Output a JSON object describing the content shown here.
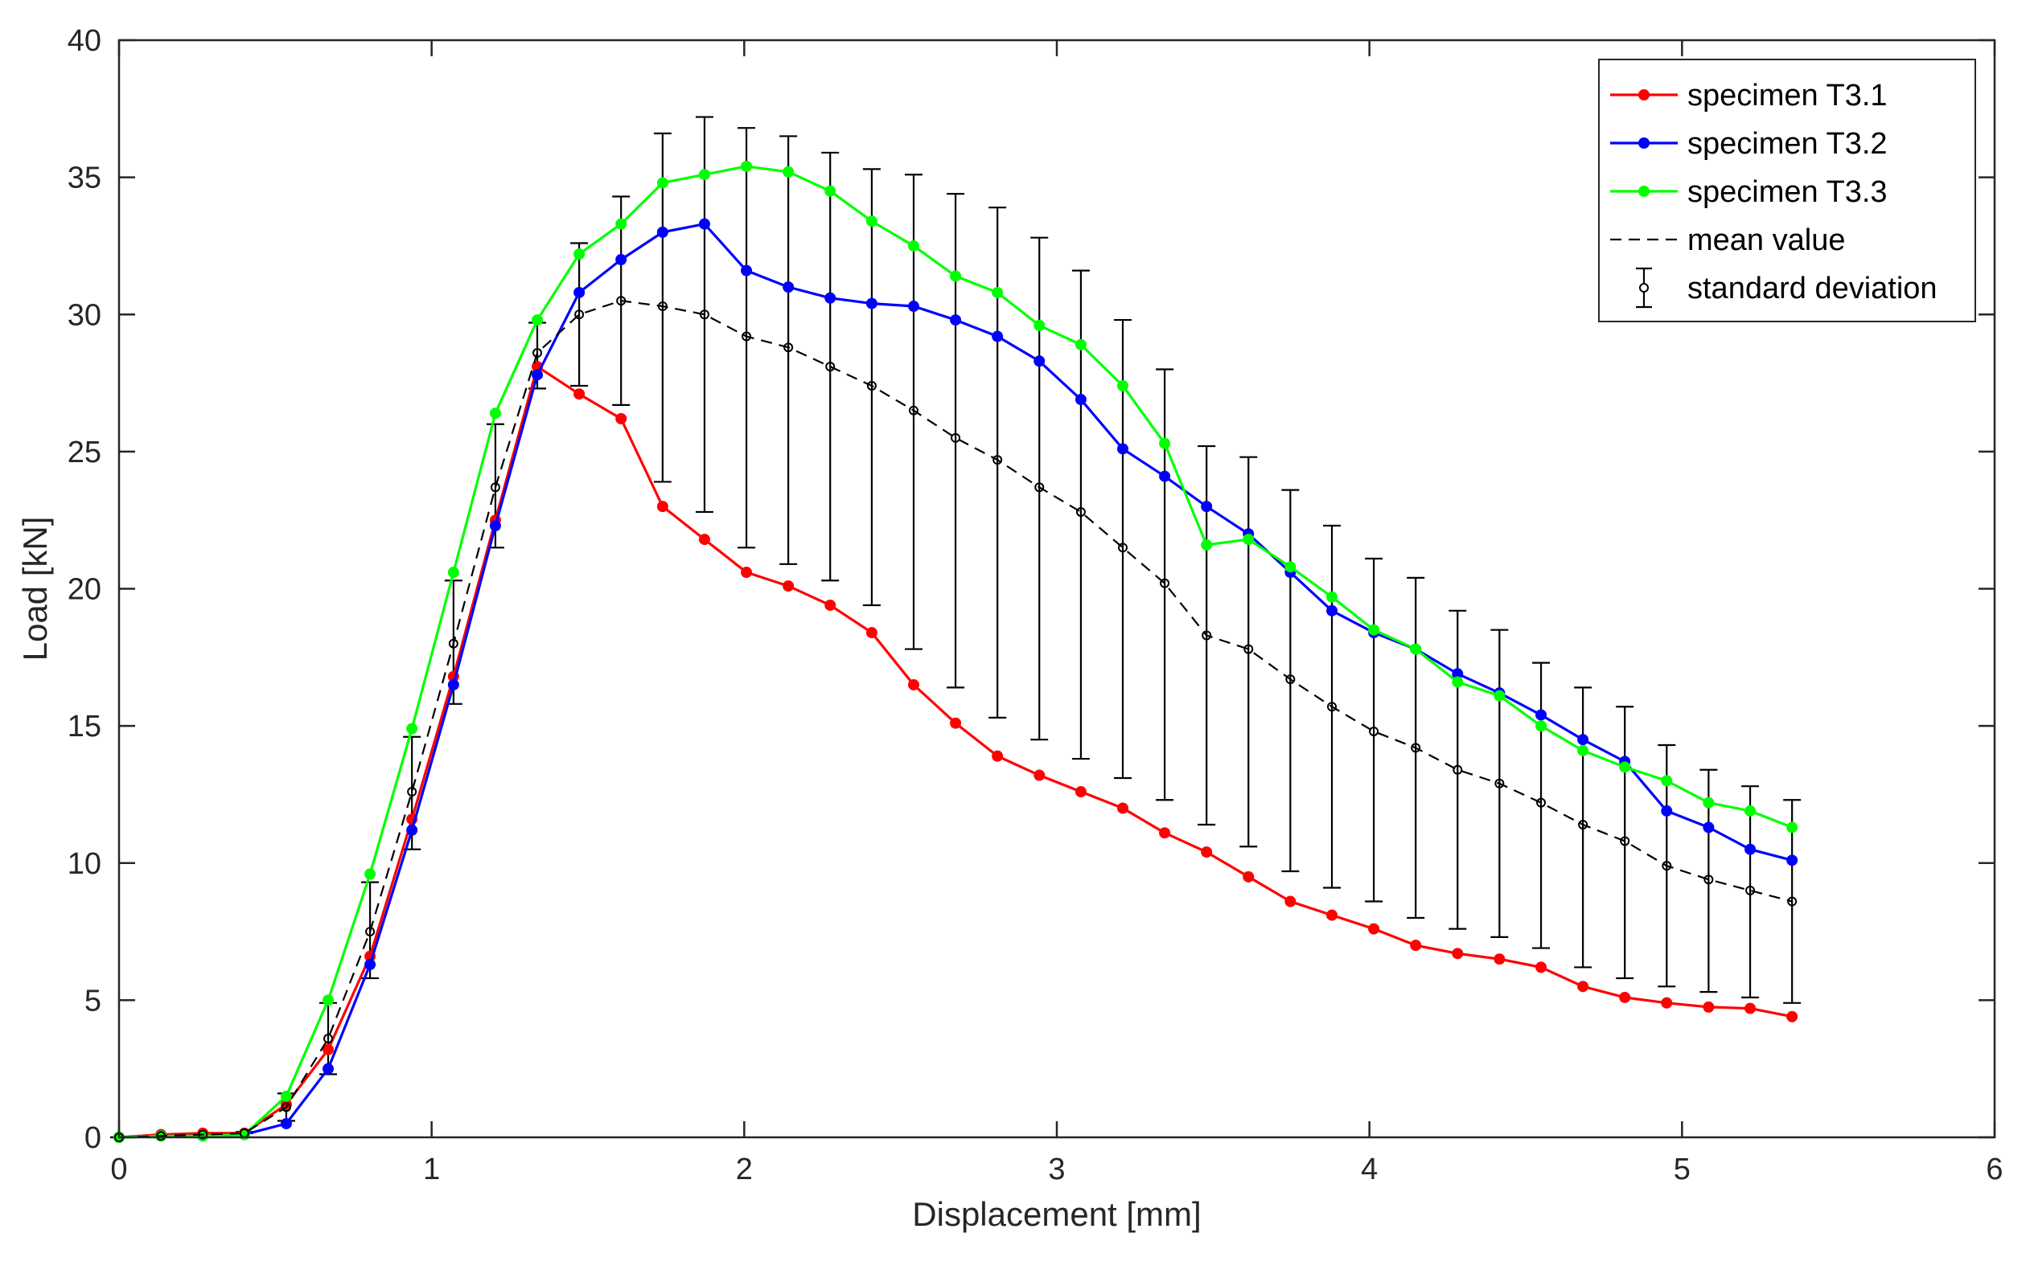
{
  "chart_data": {
    "type": "line",
    "title": "",
    "xlabel": "Displacement [mm]",
    "ylabel": "Load [kN]",
    "xlim": [
      0,
      6
    ],
    "ylim": [
      0,
      40
    ],
    "xticks": [
      0,
      1,
      2,
      3,
      4,
      5,
      6
    ],
    "yticks": [
      0,
      5,
      10,
      15,
      20,
      25,
      30,
      35,
      40
    ],
    "x": [
      0,
      0.134,
      0.268,
      0.401,
      0.535,
      0.669,
      0.803,
      0.937,
      1.07,
      1.204,
      1.338,
      1.472,
      1.606,
      1.739,
      1.873,
      2.007,
      2.141,
      2.275,
      2.408,
      2.542,
      2.676,
      2.81,
      2.944,
      3.077,
      3.211,
      3.345,
      3.479,
      3.613,
      3.747,
      3.88,
      4.014,
      4.148,
      4.282,
      4.416,
      4.549,
      4.683,
      4.817,
      4.951,
      5.085,
      5.218,
      5.352
    ],
    "series": [
      {
        "name": "specimen T3.1",
        "color": "#ff0000",
        "style": "solid",
        "values": [
          0,
          0.1,
          0.15,
          0.15,
          1.2,
          3.2,
          6.6,
          11.6,
          16.8,
          22.5,
          28.1,
          27.1,
          26.2,
          23.0,
          21.8,
          20.6,
          20.1,
          19.4,
          18.4,
          16.5,
          15.1,
          13.9,
          13.2,
          12.6,
          12.0,
          11.1,
          10.4,
          9.5,
          8.6,
          8.1,
          7.6,
          7.0,
          6.7,
          6.5,
          6.2,
          5.5,
          5.1,
          4.9,
          4.75,
          4.7,
          4.4
        ]
      },
      {
        "name": "specimen T3.2",
        "color": "#0000ff",
        "style": "solid",
        "values": [
          0,
          0.05,
          0.05,
          0.1,
          0.5,
          2.5,
          6.3,
          11.2,
          16.5,
          22.3,
          27.8,
          30.8,
          32.0,
          33.0,
          33.3,
          31.6,
          31.0,
          30.6,
          30.4,
          30.3,
          29.8,
          29.2,
          28.3,
          26.9,
          25.1,
          24.1,
          23.0,
          22.0,
          20.6,
          19.2,
          18.4,
          17.8,
          16.9,
          16.2,
          15.4,
          14.5,
          13.7,
          11.9,
          11.3,
          10.5,
          10.1
        ]
      },
      {
        "name": "specimen T3.3",
        "color": "#00ff00",
        "style": "solid",
        "values": [
          0,
          0.05,
          0.05,
          0.1,
          1.5,
          5.0,
          9.6,
          14.9,
          20.6,
          26.4,
          29.8,
          32.2,
          33.3,
          34.8,
          35.1,
          35.4,
          35.2,
          34.5,
          33.4,
          32.5,
          31.4,
          30.8,
          29.6,
          28.9,
          27.4,
          25.3,
          21.6,
          21.8,
          20.8,
          19.7,
          18.5,
          17.8,
          16.6,
          16.1,
          15.0,
          14.1,
          13.5,
          13.0,
          12.2,
          11.9,
          11.3
        ]
      },
      {
        "name": "mean value",
        "color": "#000000",
        "style": "dashed",
        "values": [
          0,
          0.05,
          0.1,
          0.15,
          1.1,
          3.6,
          7.5,
          12.6,
          18.0,
          23.7,
          28.6,
          30.0,
          30.5,
          30.3,
          30.0,
          29.2,
          28.8,
          28.1,
          27.4,
          26.5,
          25.5,
          24.7,
          23.7,
          22.8,
          21.5,
          20.2,
          18.3,
          17.8,
          16.7,
          15.7,
          14.8,
          14.2,
          13.4,
          12.9,
          12.2,
          11.4,
          10.8,
          9.9,
          9.4,
          9.0,
          8.6
        ]
      }
    ],
    "error_bars": {
      "name": "standard deviation",
      "color": "#000000",
      "lower": [
        0,
        0.05,
        0.1,
        0.15,
        0.6,
        2.3,
        5.8,
        10.5,
        15.8,
        21.5,
        27.3,
        27.4,
        26.7,
        23.9,
        22.8,
        21.5,
        20.9,
        20.3,
        19.4,
        17.8,
        16.4,
        15.3,
        14.5,
        13.8,
        13.1,
        12.3,
        11.4,
        10.6,
        9.7,
        9.1,
        8.6,
        8.0,
        7.6,
        7.3,
        6.9,
        6.2,
        5.8,
        5.5,
        5.3,
        5.1,
        4.9
      ],
      "upper": [
        0,
        0.1,
        0.15,
        0.2,
        1.6,
        4.9,
        9.3,
        14.6,
        20.3,
        26.0,
        29.7,
        32.6,
        34.3,
        36.6,
        37.2,
        36.8,
        36.5,
        35.9,
        35.3,
        35.1,
        34.4,
        33.9,
        32.8,
        31.6,
        29.8,
        28.0,
        25.2,
        24.8,
        23.6,
        22.3,
        21.1,
        20.4,
        19.2,
        18.5,
        17.3,
        16.4,
        15.7,
        14.3,
        13.4,
        12.8,
        12.3
      ]
    },
    "legend": {
      "position": "top-right",
      "entries": [
        "specimen T3.1",
        "specimen T3.2",
        "specimen T3.3",
        "mean value",
        "standard deviation"
      ]
    },
    "grid": false
  }
}
